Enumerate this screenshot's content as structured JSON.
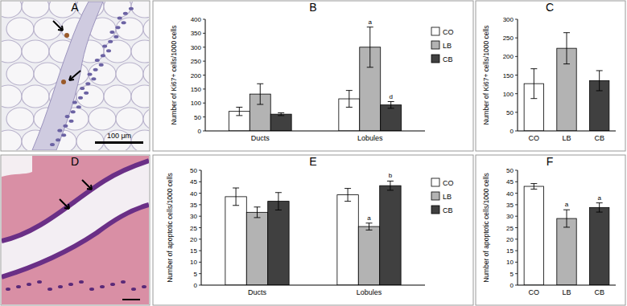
{
  "chart_data": [
    {
      "type": "bar",
      "title": "B",
      "y_label": "Number of Ki67+ cells/1000 cells",
      "categories": [
        "Ducts",
        "Lobules"
      ],
      "series": [
        {
          "name": "CO",
          "color": "#ffffff",
          "values": [
            70,
            115
          ],
          "errors": [
            15,
            30
          ],
          "annotations": [
            null,
            null
          ]
        },
        {
          "name": "LB",
          "color": "#b3b3b3",
          "values": [
            132,
            300
          ],
          "errors": [
            37,
            72
          ],
          "annotations": [
            null,
            "a"
          ]
        },
        {
          "name": "CB",
          "color": "#404040",
          "values": [
            60,
            93
          ],
          "errors": [
            5,
            12
          ],
          "annotations": [
            null,
            "d"
          ]
        }
      ],
      "ylim": [
        0,
        400
      ],
      "yticks": [
        0,
        50,
        100,
        150,
        200,
        250,
        300,
        350,
        400
      ],
      "legend": "right",
      "grid": false
    },
    {
      "type": "bar",
      "title": "C",
      "y_label": "Number of Ki67+ cells/1000 cells",
      "categories": [
        "CO",
        "LB",
        "CB"
      ],
      "values": [
        127,
        222,
        135
      ],
      "errors": [
        40,
        42,
        27
      ],
      "colors": [
        "#ffffff",
        "#b3b3b3",
        "#404040"
      ],
      "annotations": [
        null,
        null,
        null
      ],
      "ylim": [
        0,
        300
      ],
      "yticks": [
        0,
        50,
        100,
        150,
        200,
        250,
        300
      ],
      "grid": false
    },
    {
      "type": "bar",
      "title": "E",
      "y_label": "Number of apoptotic cells/1000 cells",
      "categories": [
        "Ducts",
        "Lobules"
      ],
      "series": [
        {
          "name": "CO",
          "color": "#ffffff",
          "values": [
            38.5,
            39.3
          ],
          "errors": [
            3.8,
            2.8
          ],
          "annotations": [
            null,
            null
          ]
        },
        {
          "name": "LB",
          "color": "#b3b3b3",
          "values": [
            31.7,
            25.5
          ],
          "errors": [
            2.3,
            1.5
          ],
          "annotations": [
            null,
            "a"
          ]
        },
        {
          "name": "CB",
          "color": "#404040",
          "values": [
            36.5,
            43.3
          ],
          "errors": [
            3.8,
            2
          ],
          "annotations": [
            null,
            "b"
          ]
        }
      ],
      "ylim": [
        0,
        50
      ],
      "yticks": [
        0,
        5,
        10,
        15,
        20,
        25,
        30,
        35,
        40,
        45,
        50
      ],
      "legend": "right",
      "grid": false
    },
    {
      "type": "bar",
      "title": "F",
      "y_label": "Number of apoptotic cells/1000 cells",
      "categories": [
        "CO",
        "LB",
        "CB"
      ],
      "values": [
        43,
        29,
        33.8
      ],
      "errors": [
        1.2,
        3.8,
        2
      ],
      "colors": [
        "#ffffff",
        "#b3b3b3",
        "#404040"
      ],
      "annotations": [
        null,
        "a",
        "a"
      ],
      "ylim": [
        0,
        50
      ],
      "yticks": [
        0,
        5,
        10,
        15,
        20,
        25,
        30,
        35,
        40,
        45,
        50
      ],
      "grid": false
    }
  ],
  "images": [
    {
      "label": "A",
      "scale_bar": "100 μm"
    },
    {
      "label": "D"
    }
  ]
}
